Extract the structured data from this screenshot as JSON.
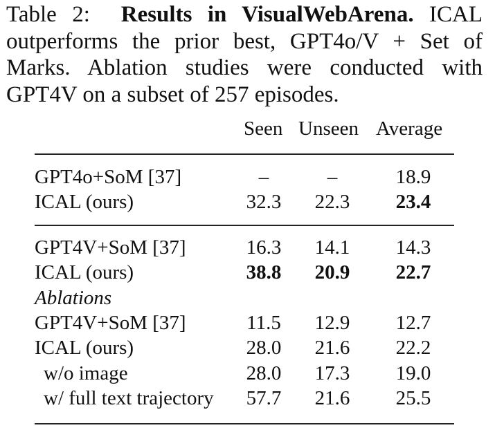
{
  "caption": {
    "label": "Table 2:",
    "title": "Results in VisualWebArena.",
    "text": "ICAL outperforms the prior best, GPT4o/V + Set of Marks. Ablation studies were conducted with GPT4V on a subset of 257 episodes."
  },
  "table": {
    "columns": [
      "Seen",
      "Unseen",
      "Average"
    ],
    "rows": [
      {
        "label": "GPT4o+SoM [37]",
        "values": [
          "–",
          "–",
          "18.9"
        ],
        "bold": [
          false,
          false,
          false
        ]
      },
      {
        "label": "ICAL (ours)",
        "values": [
          "32.3",
          "22.3",
          "23.4"
        ],
        "bold": [
          false,
          false,
          true
        ]
      },
      {
        "label": "GPT4V+SoM [37]",
        "values": [
          "16.3",
          "14.1",
          "14.3"
        ],
        "bold": [
          false,
          false,
          false
        ]
      },
      {
        "label": "ICAL (ours)",
        "values": [
          "38.8",
          "20.9",
          "22.7"
        ],
        "bold": [
          true,
          true,
          true
        ]
      },
      {
        "label": "Ablations",
        "section": true
      },
      {
        "label": "GPT4V+SoM [37]",
        "values": [
          "11.5",
          "12.9",
          "12.7"
        ],
        "bold": [
          false,
          false,
          false
        ]
      },
      {
        "label": "ICAL (ours)",
        "values": [
          "28.0",
          "21.6",
          "22.2"
        ],
        "bold": [
          false,
          false,
          false
        ]
      },
      {
        "label": "w/o image",
        "values": [
          "28.0",
          "17.3",
          "19.0"
        ],
        "bold": [
          false,
          false,
          false
        ],
        "indent": true
      },
      {
        "label": "w/ full text trajectory",
        "values": [
          "57.7",
          "21.6",
          "25.5"
        ],
        "bold": [
          false,
          false,
          false
        ],
        "indent": true
      }
    ]
  }
}
